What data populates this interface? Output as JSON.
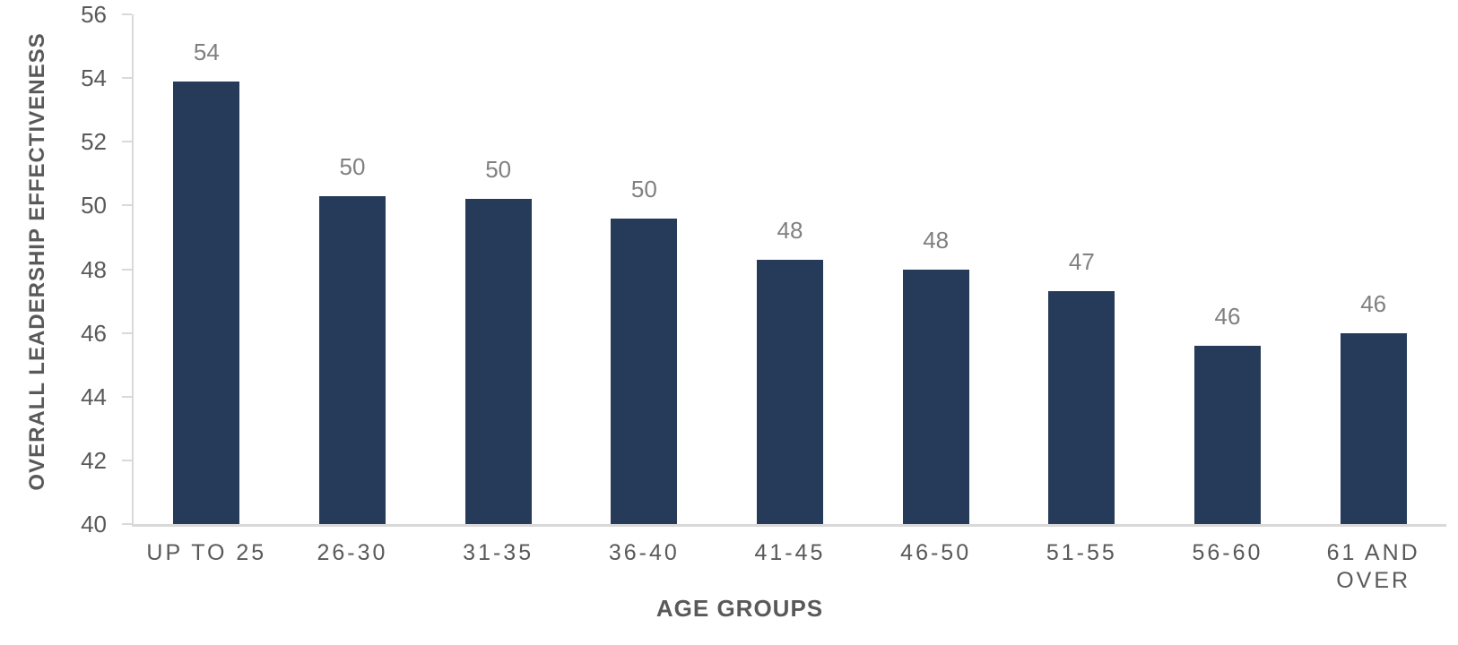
{
  "chart_data": {
    "type": "bar",
    "title": "",
    "categories": [
      "UP TO 25",
      "26-30",
      "31-35",
      "36-40",
      "41-45",
      "46-50",
      "51-55",
      "56-60",
      "61 AND OVER"
    ],
    "values": [
      53.9,
      50.3,
      50.2,
      49.6,
      48.3,
      48.0,
      47.3,
      45.6,
      46.0
    ],
    "data_labels": [
      "54",
      "50",
      "50",
      "50",
      "48",
      "48",
      "47",
      "46",
      "46"
    ],
    "xlabel": "AGE GROUPS",
    "ylabel": "OVERALL LEADERSHIP EFFECTIVENESS",
    "ylim": [
      40,
      56
    ],
    "ytick_step": 2,
    "yticks": [
      40,
      42,
      44,
      46,
      48,
      50,
      52,
      54,
      56
    ],
    "grid": false,
    "legend": false,
    "colors": {
      "bar": "#263a59",
      "axis_line": "#d9d9d9",
      "tick_label": "#595959",
      "data_label": "#808080",
      "axis_title": "#595959"
    }
  }
}
